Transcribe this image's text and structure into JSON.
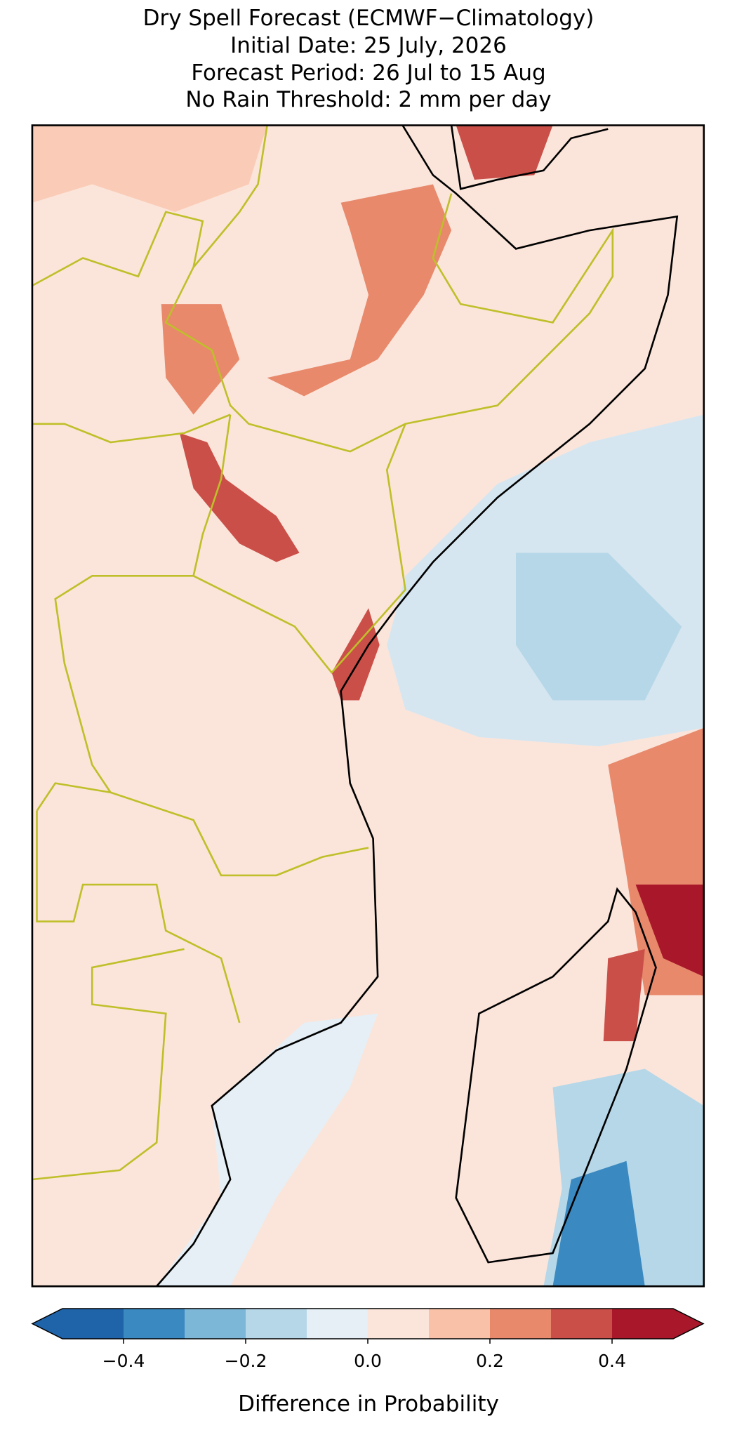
{
  "chart_data": {
    "type": "map",
    "title": [
      "Dry Spell Forecast (ECMWF−Climatology)",
      "Initial Date: 25 July, 2026",
      "Forecast Period: 26 Jul to 15 Aug",
      "No Rain Threshold: 2 mm per day"
    ],
    "colorbar": {
      "label": "Difference in Probability",
      "boundaries": [
        -0.5,
        -0.4,
        -0.3,
        -0.2,
        -0.1,
        0,
        0.1,
        0.2,
        0.3,
        0.4,
        0.5
      ],
      "colors": [
        "#1f63a8",
        "#3a89c0",
        "#7db7d8",
        "#b6d7e8",
        "#e5eff5",
        "#fbe5da",
        "#f9c2a8",
        "#e8896c",
        "#ca4f48",
        "#a8172a"
      ],
      "extend": "both",
      "ticks": [
        {
          "value": -0.4,
          "label": "−0.4"
        },
        {
          "value": -0.2,
          "label": "−0.2"
        },
        {
          "value": 0,
          "label": "0.0"
        },
        0.2,
        0.4
      ]
    }
  }
}
